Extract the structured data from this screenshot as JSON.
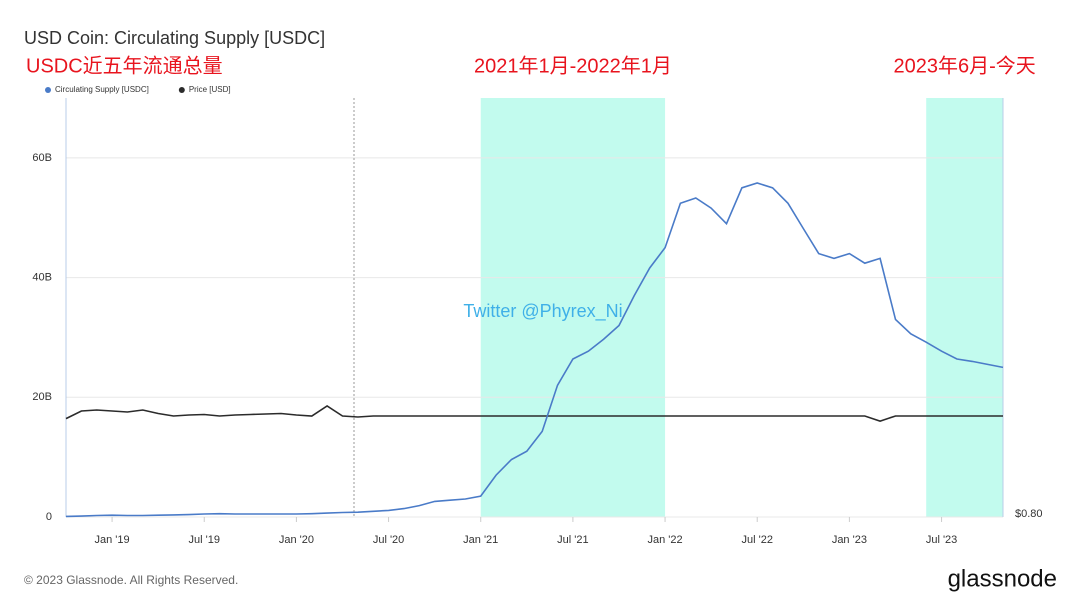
{
  "chart_data": {
    "type": "line",
    "title": "USD Coin: Circulating Supply [USDC]",
    "subtitle": "USDC近五年流通总量",
    "watermark": "Twitter @Phyrex_Ni",
    "footer": "© 2023 Glassnode. All Rights Reserved.",
    "logo": "glassnode",
    "highlights": [
      {
        "label": "2021年1月-2022年1月",
        "start": "2021-01",
        "end": "2022-01"
      },
      {
        "label": "2023年6月-今天",
        "start": "2023-06",
        "end": "2023-11"
      }
    ],
    "x": [
      "2018-10",
      "2018-11",
      "2018-12",
      "2019-01",
      "2019-02",
      "2019-03",
      "2019-04",
      "2019-05",
      "2019-06",
      "2019-07",
      "2019-08",
      "2019-09",
      "2019-10",
      "2019-11",
      "2019-12",
      "2020-01",
      "2020-02",
      "2020-03",
      "2020-04",
      "2020-05",
      "2020-06",
      "2020-07",
      "2020-08",
      "2020-09",
      "2020-10",
      "2020-11",
      "2020-12",
      "2021-01",
      "2021-02",
      "2021-03",
      "2021-04",
      "2021-05",
      "2021-06",
      "2021-07",
      "2021-08",
      "2021-09",
      "2021-10",
      "2021-11",
      "2021-12",
      "2022-01",
      "2022-02",
      "2022-03",
      "2022-04",
      "2022-05",
      "2022-06",
      "2022-07",
      "2022-08",
      "2022-09",
      "2022-10",
      "2022-11",
      "2022-12",
      "2023-01",
      "2023-02",
      "2023-03",
      "2023-04",
      "2023-05",
      "2023-06",
      "2023-07",
      "2023-08",
      "2023-09",
      "2023-10",
      "2023-11"
    ],
    "series": [
      {
        "name": "Circulating Supply [USDC]",
        "color": "#4a7bc8",
        "values": [
          100000000.0,
          150000000.0,
          250000000.0,
          300000000.0,
          250000000.0,
          250000000.0,
          300000000.0,
          350000000.0,
          400000000.0,
          500000000.0,
          550000000.0,
          500000000.0,
          500000000.0,
          500000000.0,
          500000000.0,
          500000000.0,
          550000000.0,
          650000000.0,
          750000000.0,
          800000000.0,
          950000000.0,
          1100000000.0,
          1400000000.0,
          1900000000.0,
          2600000000.0,
          2800000000.0,
          3000000000.0,
          3500000000.0,
          7000000000.0,
          9600000000.0,
          11000000000.0,
          14300000000.0,
          22000000000.0,
          26400000000.0,
          27700000000.0,
          29700000000.0,
          32000000000.0,
          37000000000.0,
          41600000000.0,
          45000000000.0,
          52400000000.0,
          53300000000.0,
          51600000000.0,
          49000000000.0,
          55000000000.0,
          55800000000.0,
          55000000000.0,
          52400000000.0,
          48200000000.0,
          44000000000.0,
          43200000000.0,
          44000000000.0,
          42400000000.0,
          43200000000.0,
          33000000000.0,
          30600000000.0,
          29200000000.0,
          27700000000.0,
          26400000000.0,
          26000000000.0,
          25500000000.0,
          25000000000.0
        ]
      },
      {
        "name": "Price [USD]",
        "color": "#2b2b2b",
        "axis": "y2",
        "values": [
          0.995,
          1.01,
          1.012,
          1.01,
          1.008,
          1.012,
          1.005,
          1.0,
          1.002,
          1.003,
          1.0,
          1.002,
          1.003,
          1.004,
          1.005,
          1.002,
          1.0,
          1.02,
          1.0,
          0.998,
          1.0,
          1.0,
          1.0,
          1.0,
          1.0,
          1.0,
          1.0,
          1.0,
          1.0,
          1.0,
          1.0,
          1.0,
          1.0,
          1.0,
          1.0,
          1.0,
          1.0,
          1.0,
          1.0,
          1.0,
          1.0,
          1.0,
          1.0,
          1.0,
          1.0,
          1.0,
          1.0,
          1.0,
          1.0,
          1.0,
          1.0,
          1.0,
          1.0,
          0.99,
          1.0,
          1.0,
          1.0,
          1.0,
          1.0,
          1.0,
          1.0,
          1.0
        ]
      }
    ],
    "xlim": [
      "2018-10",
      "2023-11"
    ],
    "xticks": [
      {
        "value": "2019-01",
        "label": "Jan '19"
      },
      {
        "value": "2019-07",
        "label": "Jul '19"
      },
      {
        "value": "2020-01",
        "label": "Jan '20"
      },
      {
        "value": "2020-07",
        "label": "Jul '20"
      },
      {
        "value": "2021-01",
        "label": "Jan '21"
      },
      {
        "value": "2021-07",
        "label": "Jul '21"
      },
      {
        "value": "2022-01",
        "label": "Jan '22"
      },
      {
        "value": "2022-07",
        "label": "Jul '22"
      },
      {
        "value": "2023-01",
        "label": "Jan '23"
      },
      {
        "value": "2023-07",
        "label": "Jul '23"
      }
    ],
    "ylim": [
      0,
      70000000000.0
    ],
    "yticks": [
      0,
      {
        "value": 20000000000.0,
        "label": "20B"
      },
      {
        "value": 40000000000.0,
        "label": "40B"
      },
      {
        "value": 60000000000.0,
        "label": "60B"
      }
    ],
    "y2lim": [
      0.8,
      1.63
    ],
    "y2ticks": [
      {
        "value": 0.8,
        "label": "$0.80"
      }
    ],
    "grid": true
  }
}
